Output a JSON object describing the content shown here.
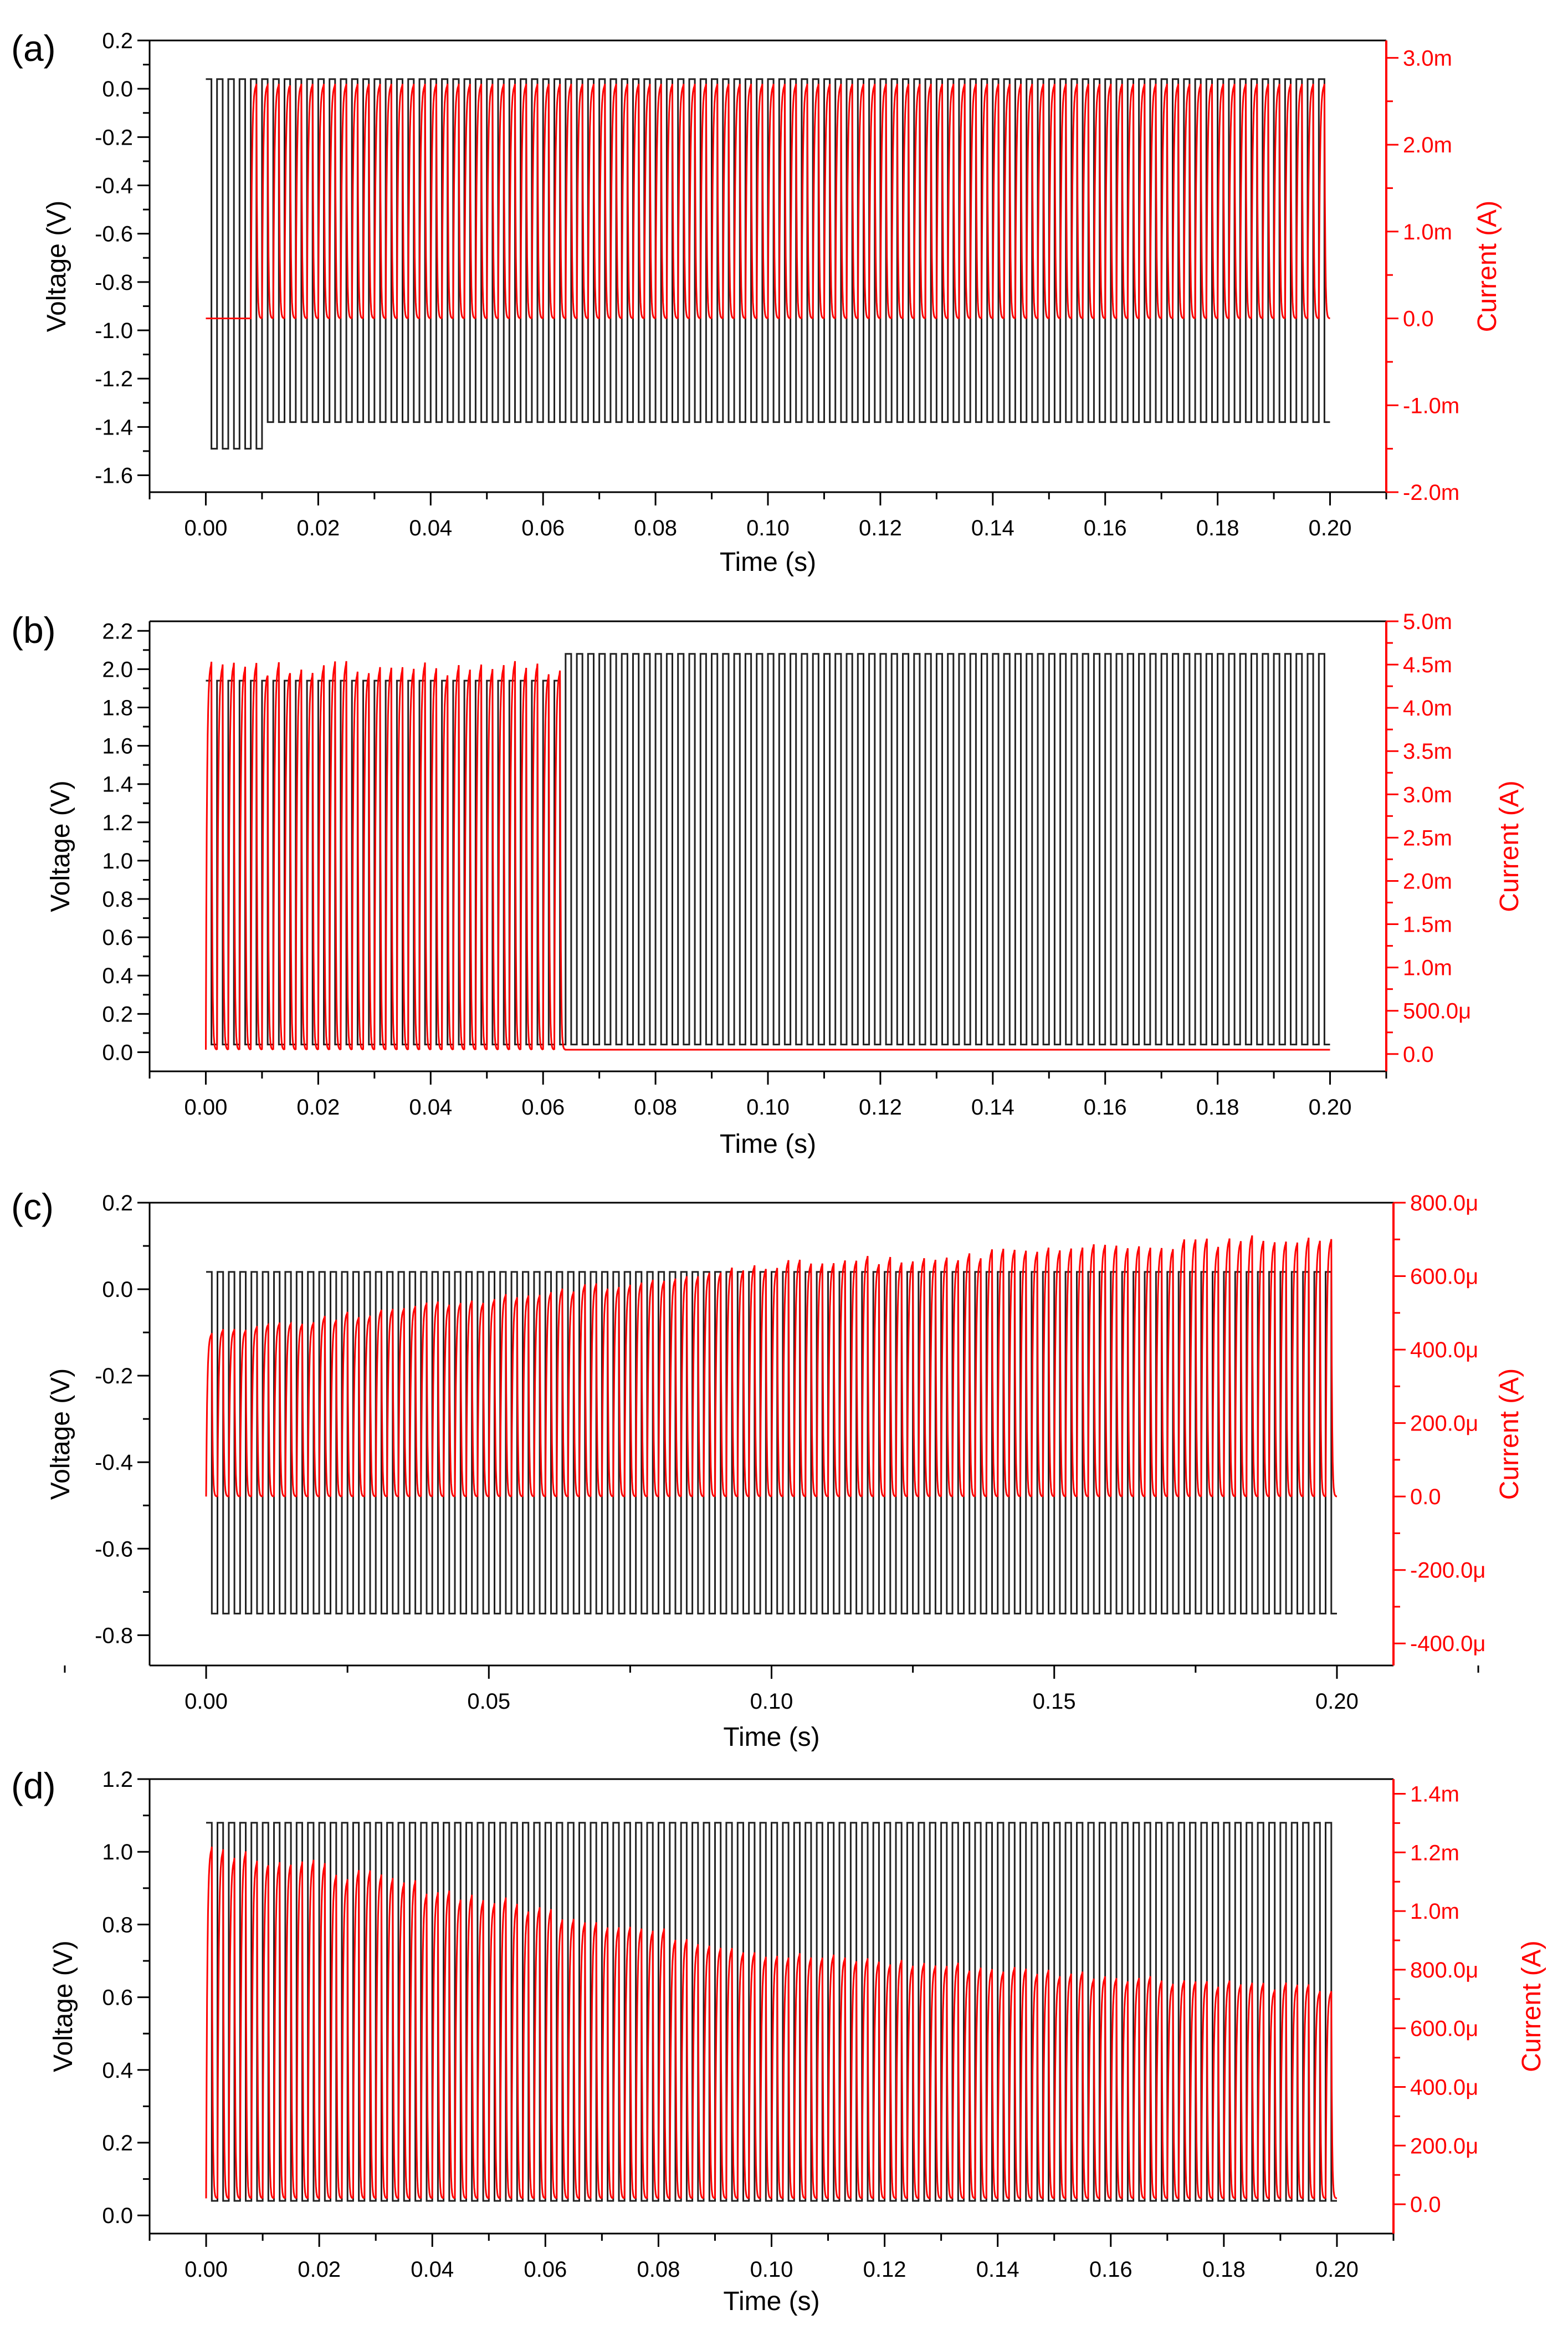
{
  "figure": {
    "colors": {
      "voltage": "#222222",
      "current": "#ff0000",
      "axis_left": "#000000",
      "axis_right": "#ff0000"
    }
  },
  "chart_data": [
    {
      "panel_label": "(a)",
      "type": "line",
      "xlabel": "Time (s)",
      "ylabel_left": "Voltage (V)",
      "ylabel_right": "Current (A)",
      "xlim": [
        -0.01,
        0.21
      ],
      "xticks": [
        0.0,
        0.02,
        0.04,
        0.06,
        0.08,
        0.1,
        0.12,
        0.14,
        0.16,
        0.18,
        0.2
      ],
      "xtick_labels": [
        "0.00",
        "0.02",
        "0.04",
        "0.06",
        "0.08",
        "0.10",
        "0.12",
        "0.14",
        "0.16",
        "0.18",
        "0.20"
      ],
      "ylim_left": [
        -1.67,
        0.2
      ],
      "yticks_left": [
        0.2,
        0.0,
        -0.2,
        -0.4,
        -0.6,
        -0.8,
        -1.0,
        -1.2,
        -1.4,
        -1.6
      ],
      "ytick_labels_left": [
        "0.2",
        "0.0",
        "-0.2",
        "-0.4",
        "-0.6",
        "-0.8",
        "-1.0",
        "-1.2",
        "-1.4",
        "-1.6"
      ],
      "ylim_right": [
        -0.002,
        0.0032
      ],
      "yticks_right": [
        0.003,
        0.002,
        0.001,
        0.0,
        -0.001,
        -0.002
      ],
      "ytick_labels_right": [
        "3.0m",
        "2.0m",
        "1.0m",
        "0.0",
        "-1.0m",
        "-2.0m"
      ],
      "series": [
        {
          "name": "Voltage",
          "axis": "left",
          "shape": "square",
          "period_s": 0.002,
          "t_start": 0.0,
          "t_end": 0.2,
          "high_V": 0.04,
          "low_V": -1.38,
          "initial_low_V": -1.49,
          "initial_duration_s": 0.009
        },
        {
          "name": "Current",
          "axis": "right",
          "shape": "pulse",
          "period_s": 0.002,
          "t_start": 0.0,
          "t_end": 0.2,
          "onset_s": 0.008,
          "baseline_A": 0.0,
          "peak_A": 0.0027,
          "rise_time_s": 0.004
        }
      ]
    },
    {
      "panel_label": "(b)",
      "type": "line",
      "xlabel": "Time (s)",
      "ylabel_left": "Voltage (V)",
      "ylabel_right": "Current (A)",
      "xlim": [
        -0.01,
        0.21
      ],
      "xticks": [
        0.0,
        0.02,
        0.04,
        0.06,
        0.08,
        0.1,
        0.12,
        0.14,
        0.16,
        0.18,
        0.2
      ],
      "xtick_labels": [
        "0.00",
        "0.02",
        "0.04",
        "0.06",
        "0.08",
        "0.10",
        "0.12",
        "0.14",
        "0.16",
        "0.18",
        "0.20"
      ],
      "ylim_left": [
        -0.1,
        2.25
      ],
      "yticks_left": [
        2.2,
        2.0,
        1.8,
        1.6,
        1.4,
        1.2,
        1.0,
        0.8,
        0.6,
        0.4,
        0.2,
        0.0
      ],
      "ytick_labels_left": [
        "2.2",
        "2.0",
        "1.8",
        "1.6",
        "1.4",
        "1.2",
        "1.0",
        "0.8",
        "0.6",
        "0.4",
        "0.2",
        "0.0"
      ],
      "ylim_right": [
        -0.0002,
        0.005
      ],
      "yticks_right": [
        0.005,
        0.0045,
        0.004,
        0.0035,
        0.003,
        0.0025,
        0.002,
        0.0015,
        0.001,
        0.0005,
        0.0
      ],
      "ytick_labels_right": [
        "5.0m",
        "4.5m",
        "4.0m",
        "3.5m",
        "3.0m",
        "2.5m",
        "2.0m",
        "1.5m",
        "1.0m",
        "500.0μ",
        "0.0"
      ],
      "series": [
        {
          "name": "Voltage",
          "axis": "left",
          "shape": "square",
          "period_s": 0.002,
          "t_start": 0.0,
          "t_end": 0.2,
          "low_V": 0.04,
          "high_V_early": 1.94,
          "high_V_late": 2.08,
          "switch_s": 0.063
        },
        {
          "name": "Current",
          "axis": "right",
          "shape": "pulse",
          "period_s": 0.002,
          "t_start": 0.0,
          "t_end": 0.2,
          "baseline_A": 5e-05,
          "peak_A": 0.0045,
          "off_after_s": 0.063,
          "rise_time_s": 0.002
        }
      ]
    },
    {
      "panel_label": "(c)",
      "type": "line",
      "xlabel": "Time (s)",
      "ylabel_left": "Voltage (V)",
      "ylabel_right": "Current (A)",
      "xlim": [
        -0.01,
        0.21
      ],
      "xticks": [
        0.0,
        0.05,
        0.1,
        0.15,
        0.2
      ],
      "xtick_labels": [
        "0.00",
        "0.05",
        "0.10",
        "0.15",
        "0.20"
      ],
      "ylim_left": [
        -0.87,
        0.2
      ],
      "yticks_left": [
        0.2,
        0.0,
        -0.2,
        -0.4,
        -0.6,
        -0.8
      ],
      "ytick_labels_left": [
        "0.2",
        "0.0",
        "-0.2",
        "-0.4",
        "-0.6",
        "-0.8"
      ],
      "ylim_right": [
        -0.00046,
        0.0008
      ],
      "yticks_right": [
        0.0008,
        0.0006,
        0.0004,
        0.0002,
        0.0,
        -0.0002,
        -0.0004
      ],
      "ytick_labels_right": [
        "800.0μ",
        "600.0μ",
        "400.0μ",
        "200.0μ",
        "0.0",
        "-200.0μ",
        "-400.0μ"
      ],
      "series": [
        {
          "name": "Voltage",
          "axis": "left",
          "shape": "square",
          "period_s": 0.002,
          "t_start": 0.0,
          "t_end": 0.2,
          "high_V": 0.04,
          "low_V": -0.75
        },
        {
          "name": "Current",
          "axis": "right",
          "shape": "pulse",
          "period_s": 0.002,
          "t_start": 0.0,
          "t_end": 0.2,
          "baseline_A": 0.0,
          "peak_A_start": 0.00045,
          "peak_A_mid": 0.00063,
          "peak_A_end": 0.00071,
          "rise_time_s": 0.004
        }
      ]
    },
    {
      "panel_label": "(d)",
      "type": "line",
      "xlabel": "Time (s)",
      "ylabel_left": "Voltage (V)",
      "ylabel_right": "Current (A)",
      "xlim": [
        -0.01,
        0.21
      ],
      "xticks": [
        0.0,
        0.02,
        0.04,
        0.06,
        0.08,
        0.1,
        0.12,
        0.14,
        0.16,
        0.18,
        0.2
      ],
      "xtick_labels": [
        "0.00",
        "0.02",
        "0.04",
        "0.06",
        "0.08",
        "0.10",
        "0.12",
        "0.14",
        "0.16",
        "0.18",
        "0.20"
      ],
      "ylim_left": [
        -0.05,
        1.2
      ],
      "yticks_left": [
        1.2,
        1.0,
        0.8,
        0.6,
        0.4,
        0.2,
        0.0
      ],
      "ytick_labels_left": [
        "1.2",
        "1.0",
        "0.8",
        "0.6",
        "0.4",
        "0.2",
        "0.0"
      ],
      "ylim_right": [
        -0.0001,
        0.00145
      ],
      "yticks_right": [
        0.0014,
        0.0012,
        0.001,
        0.0008,
        0.0006,
        0.0004,
        0.0002,
        0.0
      ],
      "ytick_labels_right": [
        "1.4m",
        "1.2m",
        "1.0m",
        "800.0μ",
        "600.0μ",
        "400.0μ",
        "200.0μ",
        "0.0"
      ],
      "series": [
        {
          "name": "Voltage",
          "axis": "left",
          "shape": "square",
          "period_s": 0.002,
          "t_start": 0.0,
          "t_end": 0.2,
          "high_V": 1.08,
          "low_V": 0.04
        },
        {
          "name": "Current",
          "axis": "right",
          "shape": "pulse",
          "period_s": 0.002,
          "t_start": 0.0,
          "t_end": 0.2,
          "baseline_A": 2e-05,
          "peak_A_start": 0.00122,
          "peak_A_mid": 0.00085,
          "peak_A_end": 0.00073,
          "rise_time_s": 0.001
        }
      ]
    }
  ]
}
